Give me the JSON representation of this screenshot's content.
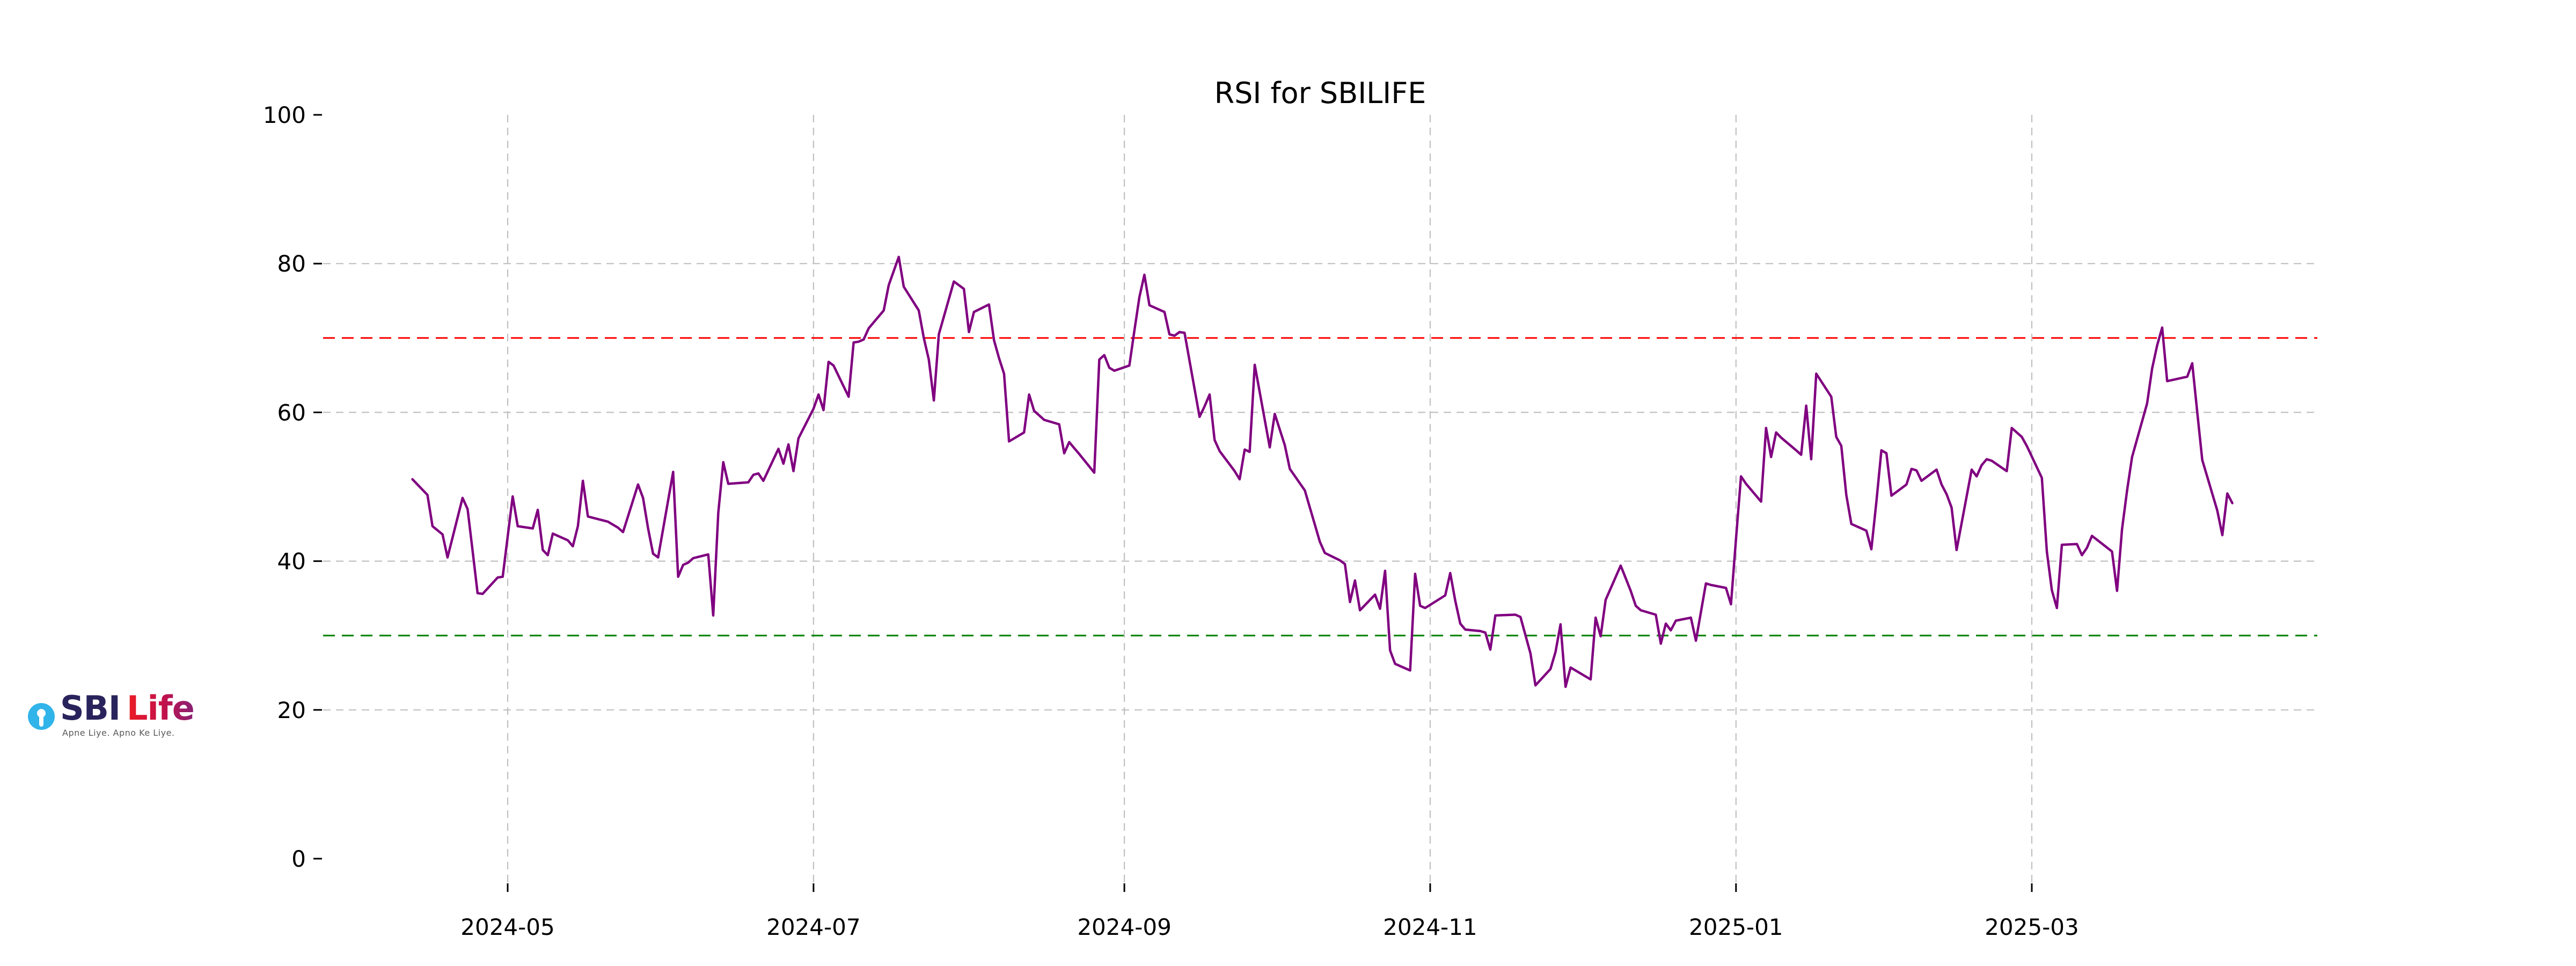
{
  "chart": {
    "title": "RSI for SBILIFE",
    "y_ticks": [
      0,
      20,
      40,
      60,
      80,
      100
    ],
    "x_ticks": [
      {
        "label": "2024-05",
        "date": "2024-05-01"
      },
      {
        "label": "2024-07",
        "date": "2024-07-01"
      },
      {
        "label": "2024-09",
        "date": "2024-09-01"
      },
      {
        "label": "2024-11",
        "date": "2024-11-01"
      },
      {
        "label": "2025-01",
        "date": "2025-01-01"
      },
      {
        "label": "2025-03",
        "date": "2025-03-01"
      }
    ],
    "colors": {
      "line": "#800080",
      "overbought": "#ff0000",
      "oversold": "#008000",
      "grid": "#c0c0c0",
      "text": "#000000",
      "background": "#ffffff"
    }
  },
  "chart_data": {
    "type": "line",
    "title": "RSI for SBILIFE",
    "xlabel": "",
    "ylabel": "",
    "ylim": [
      0,
      100
    ],
    "grid": true,
    "legend_position": "none",
    "x_axis": "dates",
    "reference_lines": [
      {
        "name": "overbought",
        "value": 70,
        "color": "#ff0000",
        "style": "dashed"
      },
      {
        "name": "oversold",
        "value": 30,
        "color": "#008000",
        "style": "dashed"
      }
    ],
    "series": [
      {
        "name": "RSI",
        "color": "#800080",
        "points": [
          [
            "2024-04-12",
            51.0
          ],
          [
            "2024-04-15",
            48.9
          ],
          [
            "2024-04-16",
            44.7
          ],
          [
            "2024-04-18",
            43.6
          ],
          [
            "2024-04-19",
            40.5
          ],
          [
            "2024-04-22",
            48.5
          ],
          [
            "2024-04-23",
            47.0
          ],
          [
            "2024-04-24",
            41.4
          ],
          [
            "2024-04-25",
            35.7
          ],
          [
            "2024-04-26",
            35.6
          ],
          [
            "2024-04-29",
            37.8
          ],
          [
            "2024-04-30",
            37.9
          ],
          [
            "2024-05-02",
            48.7
          ],
          [
            "2024-05-03",
            44.7
          ],
          [
            "2024-05-06",
            44.4
          ],
          [
            "2024-05-07",
            46.9
          ],
          [
            "2024-05-08",
            41.5
          ],
          [
            "2024-05-09",
            40.8
          ],
          [
            "2024-05-10",
            43.7
          ],
          [
            "2024-05-13",
            42.8
          ],
          [
            "2024-05-14",
            42.0
          ],
          [
            "2024-05-15",
            44.7
          ],
          [
            "2024-05-16",
            50.8
          ],
          [
            "2024-05-17",
            46.0
          ],
          [
            "2024-05-21",
            45.3
          ],
          [
            "2024-05-22",
            44.9
          ],
          [
            "2024-05-23",
            44.5
          ],
          [
            "2024-05-24",
            43.9
          ],
          [
            "2024-05-27",
            50.3
          ],
          [
            "2024-05-28",
            48.5
          ],
          [
            "2024-05-29",
            44.4
          ],
          [
            "2024-05-30",
            41.0
          ],
          [
            "2024-05-31",
            40.5
          ],
          [
            "2024-06-03",
            52.0
          ],
          [
            "2024-06-04",
            37.9
          ],
          [
            "2024-06-05",
            39.5
          ],
          [
            "2024-06-06",
            39.8
          ],
          [
            "2024-06-07",
            40.4
          ],
          [
            "2024-06-10",
            40.9
          ],
          [
            "2024-06-11",
            32.7
          ],
          [
            "2024-06-12",
            46.5
          ],
          [
            "2024-06-13",
            53.3
          ],
          [
            "2024-06-14",
            50.4
          ],
          [
            "2024-06-18",
            50.6
          ],
          [
            "2024-06-19",
            51.6
          ],
          [
            "2024-06-20",
            51.8
          ],
          [
            "2024-06-21",
            50.8
          ],
          [
            "2024-06-24",
            55.1
          ],
          [
            "2024-06-25",
            53.1
          ],
          [
            "2024-06-26",
            55.7
          ],
          [
            "2024-06-27",
            52.1
          ],
          [
            "2024-06-28",
            56.5
          ],
          [
            "2024-07-01",
            60.5
          ],
          [
            "2024-07-02",
            62.4
          ],
          [
            "2024-07-03",
            60.3
          ],
          [
            "2024-07-04",
            66.8
          ],
          [
            "2024-07-05",
            66.3
          ],
          [
            "2024-07-08",
            62.1
          ],
          [
            "2024-07-09",
            69.4
          ],
          [
            "2024-07-10",
            69.5
          ],
          [
            "2024-07-11",
            69.8
          ],
          [
            "2024-07-12",
            71.3
          ],
          [
            "2024-07-15",
            73.7
          ],
          [
            "2024-07-16",
            77.1
          ],
          [
            "2024-07-18",
            80.9
          ],
          [
            "2024-07-19",
            76.9
          ],
          [
            "2024-07-22",
            73.7
          ],
          [
            "2024-07-23",
            70.0
          ],
          [
            "2024-07-24",
            67.1
          ],
          [
            "2024-07-25",
            61.6
          ],
          [
            "2024-07-26",
            70.5
          ],
          [
            "2024-07-29",
            77.6
          ],
          [
            "2024-07-30",
            77.1
          ],
          [
            "2024-07-31",
            76.6
          ],
          [
            "2024-08-01",
            70.8
          ],
          [
            "2024-08-02",
            73.5
          ],
          [
            "2024-08-05",
            74.5
          ],
          [
            "2024-08-06",
            69.7
          ],
          [
            "2024-08-07",
            67.3
          ],
          [
            "2024-08-08",
            65.2
          ],
          [
            "2024-08-09",
            56.1
          ],
          [
            "2024-08-12",
            57.3
          ],
          [
            "2024-08-13",
            62.4
          ],
          [
            "2024-08-14",
            60.2
          ],
          [
            "2024-08-16",
            59.0
          ],
          [
            "2024-08-19",
            58.4
          ],
          [
            "2024-08-20",
            54.5
          ],
          [
            "2024-08-21",
            56.0
          ],
          [
            "2024-08-22",
            55.2
          ],
          [
            "2024-08-23",
            54.4
          ],
          [
            "2024-08-26",
            51.9
          ],
          [
            "2024-08-27",
            67.1
          ],
          [
            "2024-08-28",
            67.7
          ],
          [
            "2024-08-29",
            66.0
          ],
          [
            "2024-08-30",
            65.6
          ],
          [
            "2024-09-02",
            66.3
          ],
          [
            "2024-09-03",
            71.0
          ],
          [
            "2024-09-04",
            75.5
          ],
          [
            "2024-09-05",
            78.5
          ],
          [
            "2024-09-06",
            74.4
          ],
          [
            "2024-09-09",
            73.5
          ],
          [
            "2024-09-10",
            70.5
          ],
          [
            "2024-09-11",
            70.3
          ],
          [
            "2024-09-12",
            70.8
          ],
          [
            "2024-09-13",
            70.7
          ],
          [
            "2024-09-16",
            59.4
          ],
          [
            "2024-09-17",
            60.8
          ],
          [
            "2024-09-18",
            62.4
          ],
          [
            "2024-09-19",
            56.3
          ],
          [
            "2024-09-20",
            54.8
          ],
          [
            "2024-09-23",
            52.1
          ],
          [
            "2024-09-24",
            51.0
          ],
          [
            "2024-09-25",
            55.0
          ],
          [
            "2024-09-26",
            54.7
          ],
          [
            "2024-09-27",
            66.4
          ],
          [
            "2024-09-30",
            55.3
          ],
          [
            "2024-10-01",
            59.8
          ],
          [
            "2024-10-03",
            55.6
          ],
          [
            "2024-10-04",
            52.4
          ],
          [
            "2024-10-07",
            49.5
          ],
          [
            "2024-10-08",
            47.2
          ],
          [
            "2024-10-09",
            44.9
          ],
          [
            "2024-10-10",
            42.6
          ],
          [
            "2024-10-11",
            41.1
          ],
          [
            "2024-10-14",
            40.1
          ],
          [
            "2024-10-15",
            39.6
          ],
          [
            "2024-10-16",
            34.5
          ],
          [
            "2024-10-17",
            37.4
          ],
          [
            "2024-10-18",
            33.4
          ],
          [
            "2024-10-21",
            35.5
          ],
          [
            "2024-10-22",
            33.6
          ],
          [
            "2024-10-23",
            38.7
          ],
          [
            "2024-10-24",
            28.0
          ],
          [
            "2024-10-25",
            26.2
          ],
          [
            "2024-10-28",
            25.3
          ],
          [
            "2024-10-29",
            38.3
          ],
          [
            "2024-10-30",
            34.0
          ],
          [
            "2024-10-31",
            33.7
          ],
          [
            "2024-11-04",
            35.4
          ],
          [
            "2024-11-05",
            38.4
          ],
          [
            "2024-11-06",
            34.7
          ],
          [
            "2024-11-07",
            31.6
          ],
          [
            "2024-11-08",
            30.8
          ],
          [
            "2024-11-11",
            30.6
          ],
          [
            "2024-11-12",
            30.4
          ],
          [
            "2024-11-13",
            28.1
          ],
          [
            "2024-11-14",
            32.7
          ],
          [
            "2024-11-18",
            32.8
          ],
          [
            "2024-11-19",
            32.5
          ],
          [
            "2024-11-21",
            27.6
          ],
          [
            "2024-11-22",
            23.3
          ],
          [
            "2024-11-25",
            25.5
          ],
          [
            "2024-11-26",
            27.8
          ],
          [
            "2024-11-27",
            31.5
          ],
          [
            "2024-11-28",
            23.1
          ],
          [
            "2024-11-29",
            25.7
          ],
          [
            "2024-12-02",
            24.5
          ],
          [
            "2024-12-03",
            24.1
          ],
          [
            "2024-12-04",
            32.4
          ],
          [
            "2024-12-05",
            29.9
          ],
          [
            "2024-12-06",
            34.8
          ],
          [
            "2024-12-09",
            39.4
          ],
          [
            "2024-12-10",
            37.7
          ],
          [
            "2024-12-11",
            36.0
          ],
          [
            "2024-12-12",
            34.0
          ],
          [
            "2024-12-13",
            33.4
          ],
          [
            "2024-12-16",
            32.8
          ],
          [
            "2024-12-17",
            28.9
          ],
          [
            "2024-12-18",
            31.6
          ],
          [
            "2024-12-19",
            30.7
          ],
          [
            "2024-12-20",
            32.0
          ],
          [
            "2024-12-23",
            32.4
          ],
          [
            "2024-12-24",
            29.3
          ],
          [
            "2024-12-26",
            37.0
          ],
          [
            "2024-12-27",
            36.8
          ],
          [
            "2024-12-30",
            36.4
          ],
          [
            "2024-12-31",
            34.2
          ],
          [
            "2025-01-01",
            43.0
          ],
          [
            "2025-01-02",
            51.4
          ],
          [
            "2025-01-03",
            50.4
          ],
          [
            "2025-01-06",
            48.0
          ],
          [
            "2025-01-07",
            57.9
          ],
          [
            "2025-01-08",
            54.0
          ],
          [
            "2025-01-09",
            57.3
          ],
          [
            "2025-01-10",
            56.6
          ],
          [
            "2025-01-13",
            54.9
          ],
          [
            "2025-01-14",
            54.3
          ],
          [
            "2025-01-15",
            60.9
          ],
          [
            "2025-01-16",
            53.7
          ],
          [
            "2025-01-17",
            65.2
          ],
          [
            "2025-01-20",
            62.1
          ],
          [
            "2025-01-21",
            56.7
          ],
          [
            "2025-01-22",
            55.5
          ],
          [
            "2025-01-23",
            48.9
          ],
          [
            "2025-01-24",
            45.0
          ],
          [
            "2025-01-27",
            44.1
          ],
          [
            "2025-01-28",
            41.6
          ],
          [
            "2025-01-29",
            48.0
          ],
          [
            "2025-01-30",
            54.9
          ],
          [
            "2025-01-31",
            54.5
          ],
          [
            "2025-02-01",
            48.8
          ],
          [
            "2025-02-03",
            49.8
          ],
          [
            "2025-02-04",
            50.3
          ],
          [
            "2025-02-05",
            52.4
          ],
          [
            "2025-02-06",
            52.2
          ],
          [
            "2025-02-07",
            50.8
          ],
          [
            "2025-02-10",
            52.3
          ],
          [
            "2025-02-11",
            50.3
          ],
          [
            "2025-02-12",
            49.0
          ],
          [
            "2025-02-13",
            47.2
          ],
          [
            "2025-02-14",
            41.5
          ],
          [
            "2025-02-17",
            52.3
          ],
          [
            "2025-02-18",
            51.4
          ],
          [
            "2025-02-19",
            52.9
          ],
          [
            "2025-02-20",
            53.7
          ],
          [
            "2025-02-21",
            53.5
          ],
          [
            "2025-02-24",
            52.1
          ],
          [
            "2025-02-25",
            57.9
          ],
          [
            "2025-02-27",
            56.7
          ],
          [
            "2025-02-28",
            55.5
          ],
          [
            "2025-03-03",
            51.2
          ],
          [
            "2025-03-04",
            41.3
          ],
          [
            "2025-03-05",
            36.1
          ],
          [
            "2025-03-06",
            33.7
          ],
          [
            "2025-03-07",
            42.2
          ],
          [
            "2025-03-10",
            42.3
          ],
          [
            "2025-03-11",
            40.8
          ],
          [
            "2025-03-12",
            41.8
          ],
          [
            "2025-03-13",
            43.4
          ],
          [
            "2025-03-17",
            41.3
          ],
          [
            "2025-03-18",
            36.0
          ],
          [
            "2025-03-19",
            44.3
          ],
          [
            "2025-03-20",
            49.5
          ],
          [
            "2025-03-21",
            54.0
          ],
          [
            "2025-03-24",
            61.2
          ],
          [
            "2025-03-25",
            65.9
          ],
          [
            "2025-03-26",
            69.0
          ],
          [
            "2025-03-27",
            71.4
          ],
          [
            "2025-03-28",
            64.2
          ],
          [
            "2025-04-01",
            64.8
          ],
          [
            "2025-04-02",
            66.6
          ],
          [
            "2025-04-03",
            60.0
          ],
          [
            "2025-04-04",
            53.6
          ],
          [
            "2025-04-07",
            46.8
          ],
          [
            "2025-04-08",
            43.5
          ],
          [
            "2025-04-09",
            49.1
          ],
          [
            "2025-04-10",
            47.8
          ]
        ]
      }
    ]
  },
  "logo": {
    "sbi": "SBI",
    "life": "Life",
    "tagline": "Apne Liye. Apno Ke Liye.",
    "colors": {
      "circle_blue": "#31b4e9",
      "sbi_navy": "#29235c",
      "life_red": "#ed1c24",
      "life_purple": "#872175"
    }
  }
}
